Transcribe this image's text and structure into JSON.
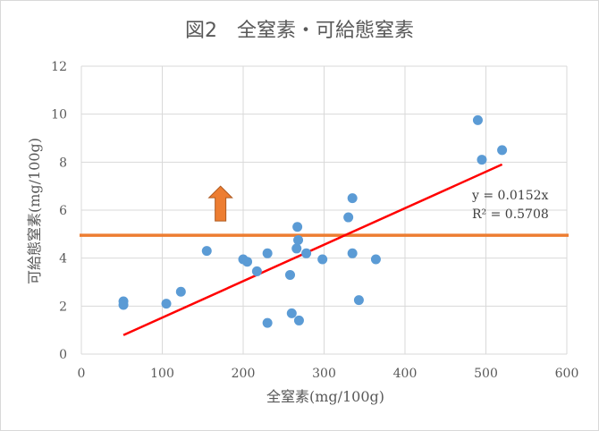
{
  "chart_data": {
    "type": "scatter",
    "title": "図2　全窒素・可給態窒素",
    "xlabel": "全窒素(mg/100g)",
    "ylabel": "可給態窒素(mg/100g)",
    "xlim": [
      0,
      600
    ],
    "ylim": [
      0,
      12
    ],
    "x_ticks": [
      0,
      100,
      200,
      300,
      400,
      500,
      600
    ],
    "y_ticks": [
      0,
      2,
      4,
      6,
      8,
      10,
      12
    ],
    "grid": true,
    "series": [
      {
        "color": "#5b9bd5",
        "points": [
          [
            52,
            2.2
          ],
          [
            52,
            2.05
          ],
          [
            105,
            2.1
          ],
          [
            123,
            2.6
          ],
          [
            155,
            4.3
          ],
          [
            200,
            3.95
          ],
          [
            205,
            3.85
          ],
          [
            217,
            3.45
          ],
          [
            230,
            4.2
          ],
          [
            230,
            1.3
          ],
          [
            258,
            3.3
          ],
          [
            260,
            1.7
          ],
          [
            266,
            4.4
          ],
          [
            267,
            5.3
          ],
          [
            268,
            4.75
          ],
          [
            269,
            1.4
          ],
          [
            278,
            4.2
          ],
          [
            298,
            3.95
          ],
          [
            330,
            5.7
          ],
          [
            335,
            6.5
          ],
          [
            335,
            4.2
          ],
          [
            343,
            2.25
          ],
          [
            364,
            3.95
          ],
          [
            490,
            9.75
          ],
          [
            495,
            8.1
          ],
          [
            520,
            8.5
          ]
        ]
      }
    ],
    "trendline": {
      "color": "#ff0000",
      "slope": 0.0152,
      "x_range": [
        52,
        520
      ],
      "equation": "y = 0.0152x",
      "r_squared": "R² = 0.5708"
    },
    "reference_line": {
      "y": 4.95,
      "color": "#ed7d31"
    },
    "arrow": {
      "x": 172,
      "y_base": 5.55,
      "y_tip": 7.0,
      "direction": "up",
      "color": "#ed7d31"
    }
  }
}
